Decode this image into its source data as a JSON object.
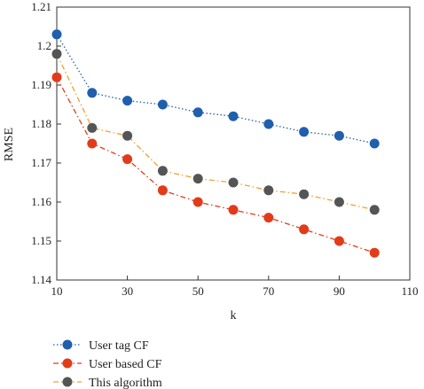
{
  "chart_data": {
    "type": "line",
    "xlabel": "k",
    "ylabel": "RMSE",
    "xlim": [
      10,
      110
    ],
    "ylim": [
      1.14,
      1.21
    ],
    "xticks": [
      10,
      30,
      50,
      70,
      90,
      110
    ],
    "yticks": [
      1.14,
      1.15,
      1.16,
      1.17,
      1.18,
      1.19,
      1.2,
      1.21
    ],
    "xtick_labels": [
      "10",
      "30",
      "50",
      "70",
      "90",
      "110"
    ],
    "ytick_labels": [
      "1.14",
      "1.15",
      "1.16",
      "1.17",
      "1.18",
      "1.19",
      "1.2",
      "1.21"
    ],
    "grid": false,
    "legend_position": "below-left",
    "x": [
      10,
      20,
      30,
      40,
      50,
      60,
      70,
      80,
      90,
      100
    ],
    "series": [
      {
        "name": "User tag CF",
        "color": "#1f5fad",
        "line_style": "dotted",
        "values": [
          1.203,
          1.188,
          1.186,
          1.185,
          1.183,
          1.182,
          1.18,
          1.178,
          1.177,
          1.175
        ]
      },
      {
        "name": "User based CF",
        "color": "#e23b1a",
        "line_style": "dash-dot",
        "values": [
          1.192,
          1.175,
          1.171,
          1.163,
          1.16,
          1.158,
          1.156,
          1.153,
          1.15,
          1.147
        ]
      },
      {
        "name": "This algorithm",
        "color": "#555555",
        "line_style": "dash-dot",
        "line_color": "#f0a030",
        "values": [
          1.198,
          1.179,
          1.177,
          1.168,
          1.166,
          1.165,
          1.163,
          1.162,
          1.16,
          1.158
        ]
      }
    ]
  }
}
